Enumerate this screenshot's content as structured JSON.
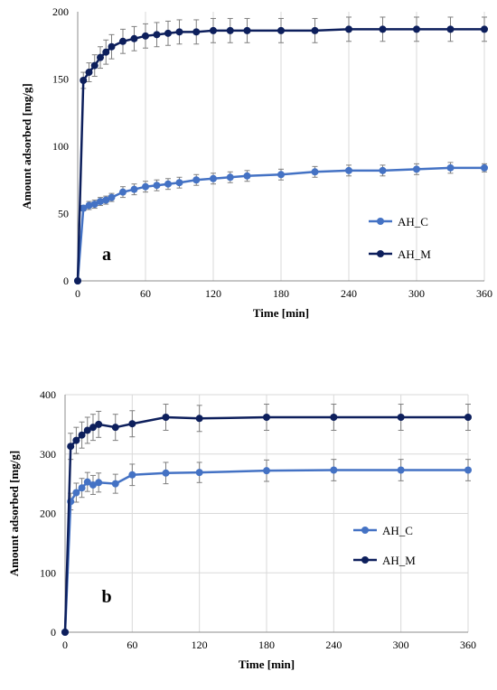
{
  "colors": {
    "AH_C": "#4472C4",
    "AH_M": "#0D1F5C",
    "gridline": "#d9d9d9",
    "errorbar": "#7f7f7f"
  },
  "chart_data": [
    {
      "type": "line",
      "panel_label": "a",
      "xlabel": "Time [min]",
      "ylabel": "Amount adsorbed [mg/g]",
      "xlim": [
        0,
        360
      ],
      "ylim": [
        0,
        200
      ],
      "xticks": [
        0,
        60,
        120,
        180,
        240,
        300,
        360
      ],
      "yticks": [
        0,
        50,
        100,
        150,
        200
      ],
      "grid": "vertical",
      "legend_position": "bottom-right",
      "series": [
        {
          "name": "AH_C",
          "x": [
            0,
            5,
            10,
            15,
            20,
            25,
            30,
            40,
            50,
            60,
            70,
            80,
            90,
            105,
            120,
            135,
            150,
            180,
            210,
            240,
            270,
            300,
            330,
            360
          ],
          "y": [
            0,
            54,
            56,
            57,
            59,
            60,
            62,
            66,
            68,
            70,
            71,
            72,
            73,
            75,
            76,
            77,
            78,
            79,
            81,
            82,
            82,
            83,
            84,
            84
          ],
          "err": [
            0,
            2,
            3,
            3,
            3,
            3,
            3,
            4,
            4,
            4,
            4,
            4,
            4,
            4,
            4,
            4,
            4,
            4,
            4,
            4,
            4,
            4,
            4,
            3
          ]
        },
        {
          "name": "AH_M",
          "x": [
            0,
            5,
            10,
            15,
            20,
            25,
            30,
            40,
            50,
            60,
            70,
            80,
            90,
            105,
            120,
            135,
            150,
            180,
            210,
            240,
            270,
            300,
            330,
            360
          ],
          "y": [
            0,
            149,
            155,
            160,
            166,
            170,
            174,
            178,
            180,
            182,
            183,
            184,
            185,
            185,
            186,
            186,
            186,
            186,
            186,
            187,
            187,
            187,
            187,
            187
          ],
          "err": [
            0,
            6,
            7,
            8,
            8,
            9,
            9,
            9,
            9,
            9,
            9,
            9,
            9,
            9,
            9,
            9,
            9,
            9,
            9,
            9,
            9,
            9,
            9,
            9
          ]
        }
      ]
    },
    {
      "type": "line",
      "panel_label": "b",
      "xlabel": "Time [min]",
      "ylabel": "Amount adsorbed [mg/g]",
      "xlim": [
        0,
        360
      ],
      "ylim": [
        0,
        400
      ],
      "xticks": [
        0,
        60,
        120,
        180,
        240,
        300,
        360
      ],
      "yticks": [
        0,
        100,
        200,
        300,
        400
      ],
      "grid": "both",
      "legend_position": "right",
      "series": [
        {
          "name": "AH_C",
          "x": [
            0,
            5,
            10,
            15,
            20,
            25,
            30,
            45,
            60,
            90,
            120,
            180,
            240,
            300,
            360
          ],
          "y": [
            0,
            220,
            235,
            243,
            253,
            248,
            252,
            250,
            265,
            268,
            269,
            272,
            273,
            273,
            273
          ],
          "err": [
            0,
            14,
            16,
            16,
            16,
            16,
            16,
            16,
            18,
            18,
            17,
            18,
            18,
            18,
            18
          ]
        },
        {
          "name": "AH_M",
          "x": [
            0,
            5,
            10,
            15,
            20,
            25,
            30,
            45,
            60,
            90,
            120,
            180,
            240,
            300,
            360
          ],
          "y": [
            0,
            313,
            323,
            332,
            340,
            345,
            350,
            345,
            351,
            362,
            360,
            362,
            362,
            362,
            362
          ],
          "err": [
            0,
            22,
            22,
            22,
            22,
            22,
            22,
            22,
            22,
            22,
            22,
            22,
            22,
            22,
            22
          ]
        }
      ]
    }
  ]
}
